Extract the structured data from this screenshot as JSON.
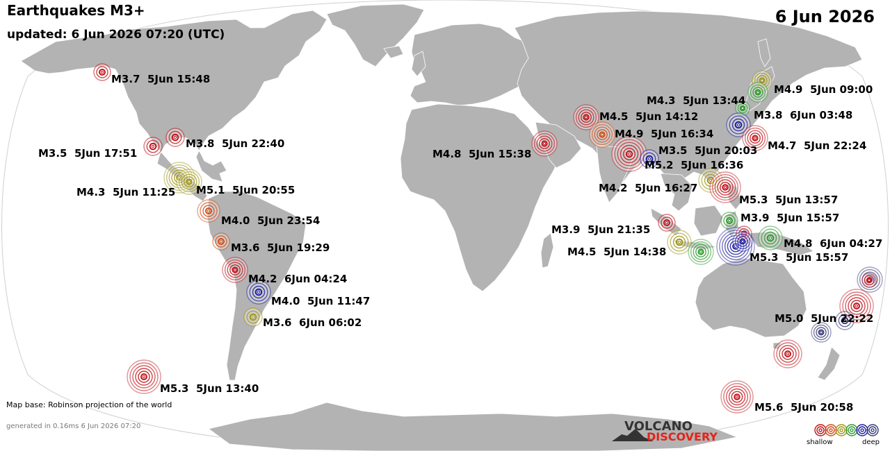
{
  "header": {
    "title": "Earthquakes M3+",
    "updated": "updated:  6 Jun 2026 07:20 (UTC)",
    "date": "6 Jun 2026"
  },
  "footer": {
    "map_base": "Map base: Robinson projection of the world",
    "generated": "generated in 0.16ms  6 Jun 2026 07:20",
    "logo_top": "VOLCANO",
    "logo_bottom": "DISCOVERY",
    "legend_shallow": "shallow",
    "legend_deep": "deep"
  },
  "colors": {
    "ocean": "#ffffff",
    "land": "#b3b3b3",
    "border": "#ffffff",
    "depth_scale": [
      "#c0131a",
      "#d24c16",
      "#a0961a",
      "#2e9b2e",
      "#1f1fa0",
      "#3a3a78"
    ]
  },
  "quakes": [
    {
      "label": "M3.7  5Jun 15:48",
      "color": "#c0131a"
    },
    {
      "label": "M3.8  5Jun 22:40",
      "color": "#c0131a"
    },
    {
      "label": "M3.5  5Jun 17:51",
      "color": "#c0131a"
    },
    {
      "label": "M4.3  5Jun 11:25",
      "color": "#a0961a"
    },
    {
      "label": "M5.1  5Jun 20:55",
      "color": "#a0961a"
    },
    {
      "label": "M4.0  5Jun 23:54",
      "color": "#d24c16"
    },
    {
      "label": "M3.6  5Jun 19:29",
      "color": "#d24c16"
    },
    {
      "label": "M4.2  6Jun 04:24",
      "color": "#c0131a"
    },
    {
      "label": "M4.0  5Jun 11:47",
      "color": "#1f1fa0"
    },
    {
      "label": "M3.6  6Jun 06:02",
      "color": "#a0961a"
    },
    {
      "label": "M5.3  5Jun 13:40",
      "color": "#c0131a"
    },
    {
      "label": "M4.8  5Jun 15:38",
      "color": "#c0131a"
    },
    {
      "label": "M4.5  5Jun 14:12",
      "color": "#c0131a"
    },
    {
      "label": "M4.9  5Jun 16:34",
      "color": "#d24c16"
    },
    {
      "label": "M3.5  5Jun 20:03",
      "color": "#c0131a"
    },
    {
      "label": "M5.2  5Jun 16:36",
      "color": "#1f1fa0"
    },
    {
      "label": "M4.2  5Jun 16:27",
      "color": "#a0961a"
    },
    {
      "label": "M5.3  5Jun 13:57",
      "color": "#c0131a"
    },
    {
      "label": "M4.3  5Jun 13:44",
      "color": "#2e9b2e"
    },
    {
      "label": "M4.9  5Jun 09:00",
      "color": "#a0961a"
    },
    {
      "label": "M3.8  6Jun 03:48",
      "color": "#1f1fa0"
    },
    {
      "label": "M4.7  5Jun 22:24",
      "color": "#c0131a"
    },
    {
      "label": "M3.9  5Jun 15:57",
      "color": "#2e9b2e"
    },
    {
      "label": "M3.9  5Jun 21:35",
      "color": "#c0131a"
    },
    {
      "label": "M4.5  5Jun 14:38",
      "color": "#a0961a"
    },
    {
      "label": "M4.8  6Jun 04:27",
      "color": "#2e9b2e"
    },
    {
      "label": "M5.3  5Jun 15:57",
      "color": "#1f1fa0"
    },
    {
      "label": "M5.0  5Jun 22:22",
      "color": "#3a3a78"
    },
    {
      "label": "M5.6  5Jun 20:58",
      "color": "#c0131a"
    },
    {
      "label": "",
      "color": "#2e9b2e"
    },
    {
      "label": "",
      "color": "#c0131a"
    },
    {
      "label": "",
      "color": "#2e9b2e"
    },
    {
      "label": "",
      "color": "#1f1fa0"
    },
    {
      "label": "",
      "color": "#c0131a"
    },
    {
      "label": "",
      "color": "#3a3a78"
    },
    {
      "label": "",
      "color": "#c0131a"
    },
    {
      "label": "",
      "color": "#3a3a78"
    },
    {
      "label": "",
      "color": "#c0131a"
    }
  ]
}
